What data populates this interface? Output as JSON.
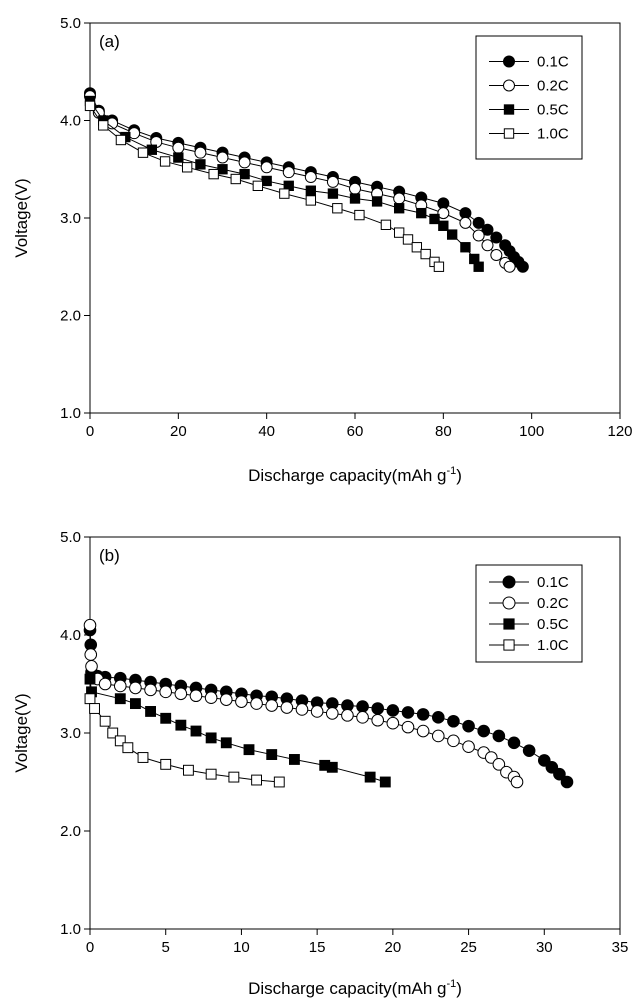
{
  "chart_data": [
    {
      "type": "line",
      "panel_label": "(a)",
      "xlabel": "Discharge capacity(mAh g",
      "xlabel_sup": "-1",
      "xlabel_end": ")",
      "ylabel": "Voltage(V)",
      "xlim": [
        0,
        120
      ],
      "ylim": [
        1.0,
        5.0
      ],
      "xticks": [
        "0",
        "20",
        "40",
        "60",
        "80",
        "100",
        "120"
      ],
      "yticks": [
        "1.0",
        "2.0",
        "3.0",
        "4.0",
        "5.0"
      ],
      "legend_position": "top-right",
      "series": [
        {
          "name": "0.1C",
          "marker": "filled-circle",
          "x": [
            0,
            2,
            5,
            10,
            15,
            20,
            25,
            30,
            35,
            40,
            45,
            50,
            55,
            60,
            65,
            70,
            75,
            80,
            85,
            88,
            90,
            92,
            94,
            95,
            96,
            97,
            98
          ],
          "y": [
            4.28,
            4.1,
            4.0,
            3.9,
            3.82,
            3.77,
            3.72,
            3.67,
            3.62,
            3.57,
            3.52,
            3.47,
            3.42,
            3.37,
            3.32,
            3.27,
            3.21,
            3.15,
            3.05,
            2.95,
            2.88,
            2.8,
            2.72,
            2.66,
            2.6,
            2.55,
            2.5
          ]
        },
        {
          "name": "0.2C",
          "marker": "open-circle",
          "x": [
            0,
            2,
            5,
            10,
            15,
            20,
            25,
            30,
            35,
            40,
            45,
            50,
            55,
            60,
            65,
            70,
            75,
            80,
            85,
            88,
            90,
            92,
            94,
            95
          ],
          "y": [
            4.25,
            4.08,
            3.97,
            3.87,
            3.78,
            3.72,
            3.67,
            3.62,
            3.57,
            3.52,
            3.47,
            3.42,
            3.37,
            3.3,
            3.25,
            3.2,
            3.13,
            3.05,
            2.95,
            2.82,
            2.72,
            2.62,
            2.54,
            2.5
          ]
        },
        {
          "name": "0.5C",
          "marker": "filled-square",
          "x": [
            0,
            3,
            8,
            14,
            20,
            25,
            30,
            35,
            40,
            45,
            50,
            55,
            60,
            65,
            70,
            75,
            78,
            80,
            82,
            85,
            87,
            88
          ],
          "y": [
            4.2,
            4.0,
            3.83,
            3.7,
            3.62,
            3.55,
            3.5,
            3.45,
            3.38,
            3.33,
            3.28,
            3.25,
            3.2,
            3.17,
            3.1,
            3.05,
            2.99,
            2.92,
            2.83,
            2.7,
            2.58,
            2.5
          ]
        },
        {
          "name": "1.0C",
          "marker": "open-square",
          "x": [
            0,
            3,
            7,
            12,
            17,
            22,
            28,
            33,
            38,
            44,
            50,
            56,
            61,
            67,
            70,
            72,
            74,
            76,
            78,
            79
          ],
          "y": [
            4.15,
            3.95,
            3.8,
            3.67,
            3.58,
            3.52,
            3.45,
            3.4,
            3.33,
            3.25,
            3.18,
            3.1,
            3.03,
            2.93,
            2.85,
            2.78,
            2.7,
            2.63,
            2.55,
            2.5
          ]
        }
      ]
    },
    {
      "type": "line",
      "panel_label": "(b)",
      "xlabel": "Discharge capacity(mAh g",
      "xlabel_sup": "-1",
      "xlabel_end": ")",
      "ylabel": "Voltage(V)",
      "xlim": [
        0,
        35
      ],
      "ylim": [
        1.0,
        5.0
      ],
      "xticks": [
        "0",
        "5",
        "10",
        "15",
        "20",
        "25",
        "30",
        "35"
      ],
      "yticks": [
        "1.0",
        "2.0",
        "3.0",
        "4.0",
        "5.0"
      ],
      "legend_position": "top-right",
      "series": [
        {
          "name": "0.1C",
          "marker": "filled-circle",
          "x": [
            0,
            0.05,
            0.1,
            0.5,
            1,
            2,
            3,
            4,
            5,
            6,
            7,
            8,
            9,
            10,
            11,
            12,
            13,
            14,
            15,
            16,
            17,
            18,
            19,
            20,
            21,
            22,
            23,
            24,
            25,
            26,
            27,
            28,
            29,
            30,
            30.5,
            31,
            31.5
          ],
          "y": [
            4.05,
            3.9,
            3.62,
            3.58,
            3.57,
            3.56,
            3.54,
            3.52,
            3.5,
            3.48,
            3.46,
            3.44,
            3.42,
            3.4,
            3.38,
            3.37,
            3.35,
            3.33,
            3.31,
            3.3,
            3.28,
            3.27,
            3.25,
            3.23,
            3.21,
            3.19,
            3.16,
            3.12,
            3.07,
            3.02,
            2.97,
            2.9,
            2.82,
            2.72,
            2.65,
            2.58,
            2.5
          ]
        },
        {
          "name": "0.2C",
          "marker": "open-circle",
          "x": [
            0,
            0.05,
            0.1,
            0.5,
            1,
            2,
            3,
            4,
            5,
            6,
            7,
            8,
            9,
            10,
            11,
            12,
            13,
            14,
            15,
            16,
            17,
            18,
            19,
            20,
            21,
            22,
            23,
            24,
            25,
            26,
            26.5,
            27,
            27.5,
            28,
            28.2
          ],
          "y": [
            4.1,
            3.8,
            3.68,
            3.55,
            3.5,
            3.48,
            3.46,
            3.44,
            3.42,
            3.4,
            3.38,
            3.36,
            3.34,
            3.32,
            3.3,
            3.28,
            3.26,
            3.24,
            3.22,
            3.2,
            3.18,
            3.16,
            3.13,
            3.1,
            3.06,
            3.02,
            2.97,
            2.92,
            2.86,
            2.8,
            2.75,
            2.68,
            2.6,
            2.55,
            2.5
          ]
        },
        {
          "name": "0.5C",
          "marker": "filled-square",
          "x": [
            0,
            0.1,
            2,
            3,
            4,
            5,
            6,
            7,
            8,
            9,
            10.5,
            12,
            13.5,
            15.5,
            16,
            18.5,
            19.5
          ],
          "y": [
            3.55,
            3.42,
            3.35,
            3.3,
            3.22,
            3.15,
            3.08,
            3.02,
            2.95,
            2.9,
            2.83,
            2.78,
            2.73,
            2.67,
            2.65,
            2.55,
            2.5
          ]
        },
        {
          "name": "1.0C",
          "marker": "open-square",
          "x": [
            0,
            0.3,
            1,
            1.5,
            2,
            2.5,
            3.5,
            5,
            6.5,
            8,
            9.5,
            11,
            12.5
          ],
          "y": [
            3.35,
            3.25,
            3.12,
            3.0,
            2.92,
            2.85,
            2.75,
            2.68,
            2.62,
            2.58,
            2.55,
            2.52,
            2.5
          ]
        }
      ]
    }
  ]
}
